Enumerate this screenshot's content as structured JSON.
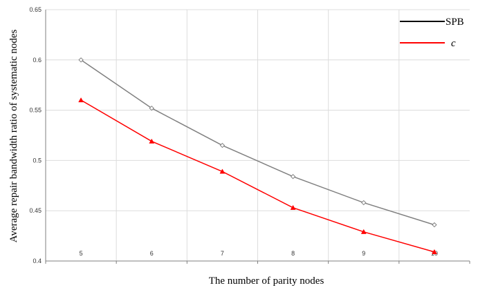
{
  "chart_data": {
    "type": "line",
    "xlabel": "The number of parity nodes",
    "ylabel": "Average repair bandwidth ratio of systematic  nodes",
    "x": [
      5,
      6,
      7,
      8,
      9,
      10
    ],
    "x_tick_labels": [
      "5",
      "6",
      "7",
      "8",
      "9",
      "10"
    ],
    "ylim": [
      0.4,
      0.65
    ],
    "y_tick_labels": [
      "0.4",
      "0.45",
      "0.5",
      "0.55",
      "0.6",
      "0.65"
    ],
    "grid": true,
    "legend_position": "top-right",
    "series": [
      {
        "name": "SPB",
        "color": "#808080",
        "legend_color": "#000000",
        "marker": "diamond-open",
        "values": [
          0.6,
          0.552,
          0.515,
          0.484,
          0.458,
          0.436
        ]
      },
      {
        "name": "c",
        "color": "#ff0000",
        "legend_color": "#ff0000",
        "marker": "triangle-filled",
        "values": [
          0.56,
          0.519,
          0.489,
          0.453,
          0.429,
          0.409
        ]
      }
    ]
  }
}
